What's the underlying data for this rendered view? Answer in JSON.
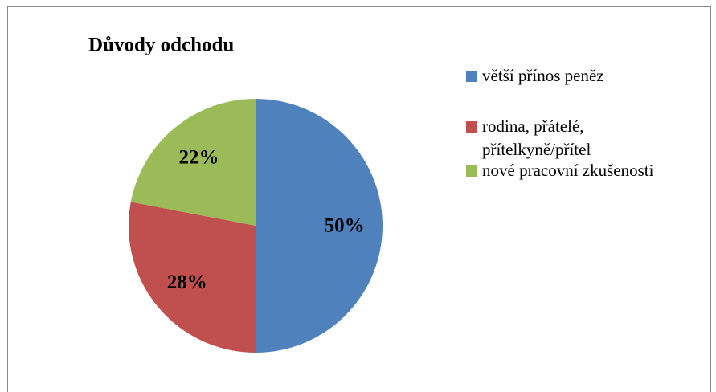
{
  "chart_data": {
    "type": "pie",
    "title": "Důvody odchodu",
    "categories": [
      "větší přínos peněz",
      "rodina, přátelé, přítelkyně/přítel",
      "nové pracovní zkušenosti"
    ],
    "values": [
      50,
      28,
      22
    ],
    "value_labels": [
      "50%",
      "28%",
      "22%"
    ],
    "colors": [
      "#4f81bd",
      "#c0504d",
      "#9bbb59"
    ],
    "legend": "right"
  }
}
